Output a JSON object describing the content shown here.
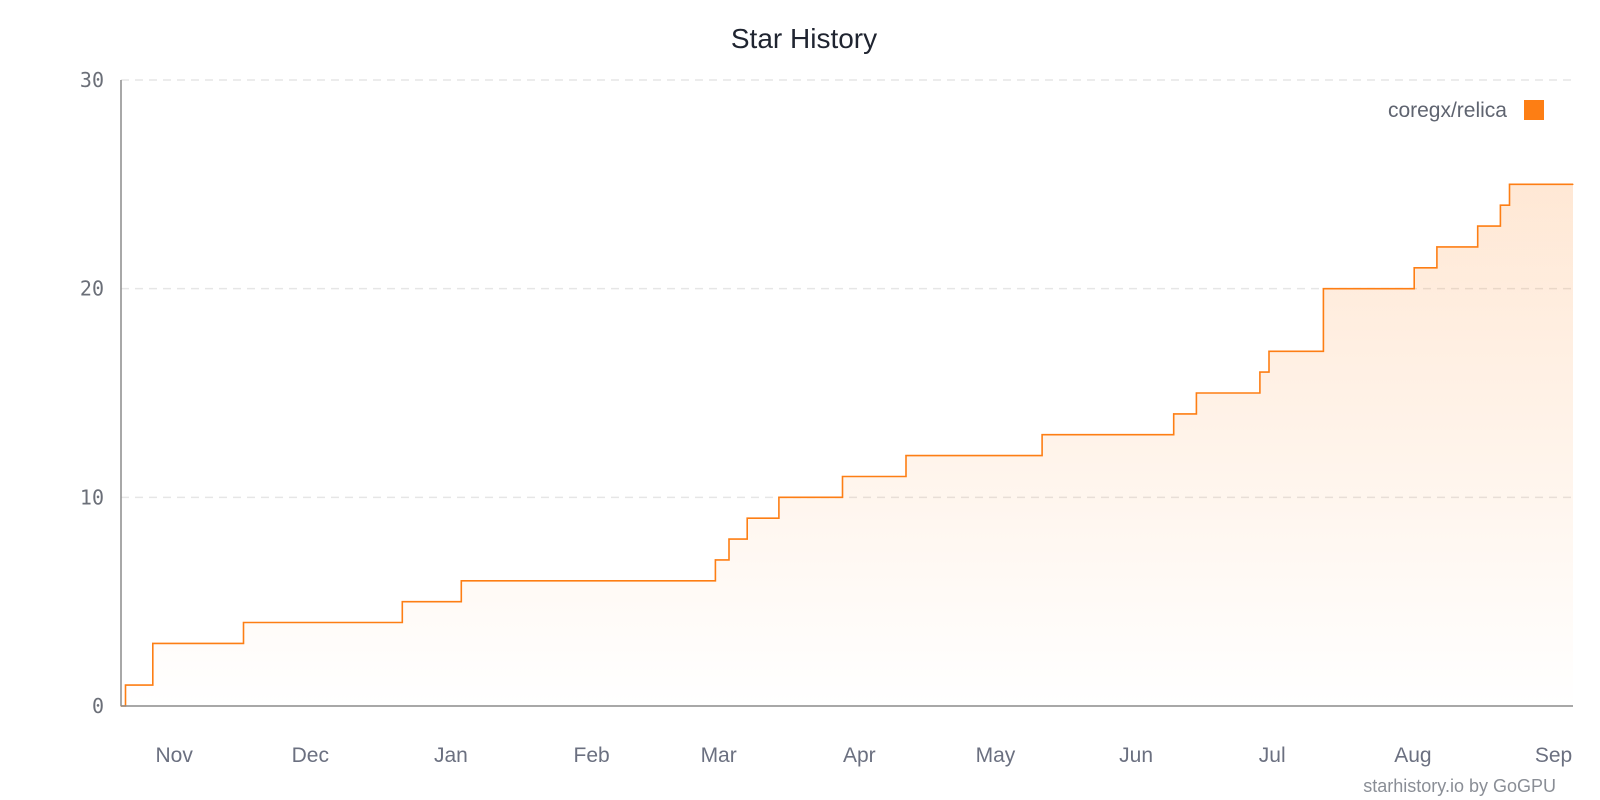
{
  "colors": {
    "series": "#fd7e14",
    "axis": "#8c8c8c",
    "grid": "#e6e6e6",
    "text": "#6b6f78"
  },
  "credit": "starhistory.io by GoGPU",
  "chart_data": {
    "type": "line",
    "title": "Star History",
    "xlabel": "",
    "ylabel": "",
    "ylim": [
      0,
      30
    ],
    "yticks": [
      0,
      10,
      20,
      30
    ],
    "grid": "horizontal-dashed",
    "legend_position": "top-right",
    "x_tick_labels": [
      "Nov",
      "Dec",
      "Jan",
      "Feb",
      "Mar",
      "Apr",
      "May",
      "Jun",
      "Jul",
      "Aug",
      "Sep"
    ],
    "x_ticks": [
      "2024-11-01",
      "2024-12-01",
      "2025-01-01",
      "2025-02-01",
      "2025-03-01",
      "2025-04-01",
      "2025-05-01",
      "2025-06-01",
      "2025-07-01",
      "2025-08-01",
      "2025-09-01"
    ],
    "x_range": [
      "2024-10-28",
      "2025-09-13"
    ],
    "series": [
      {
        "name": "coregx/relica",
        "color": "#fd7e14",
        "step": true,
        "points": [
          [
            "2024-10-28",
            0
          ],
          [
            "2024-10-29",
            1
          ],
          [
            "2024-11-04",
            3
          ],
          [
            "2024-11-24",
            4
          ],
          [
            "2024-12-29",
            5
          ],
          [
            "2025-01-11",
            6
          ],
          [
            "2025-03-08",
            7
          ],
          [
            "2025-03-11",
            8
          ],
          [
            "2025-03-15",
            9
          ],
          [
            "2025-03-22",
            10
          ],
          [
            "2025-04-05",
            11
          ],
          [
            "2025-04-19",
            12
          ],
          [
            "2025-05-19",
            13
          ],
          [
            "2025-06-17",
            14
          ],
          [
            "2025-06-22",
            15
          ],
          [
            "2025-07-06",
            16
          ],
          [
            "2025-07-08",
            17
          ],
          [
            "2025-07-20",
            20
          ],
          [
            "2025-08-09",
            21
          ],
          [
            "2025-08-14",
            22
          ],
          [
            "2025-08-23",
            23
          ],
          [
            "2025-08-28",
            24
          ],
          [
            "2025-08-30",
            25
          ],
          [
            "2025-09-13",
            25
          ]
        ]
      }
    ]
  }
}
